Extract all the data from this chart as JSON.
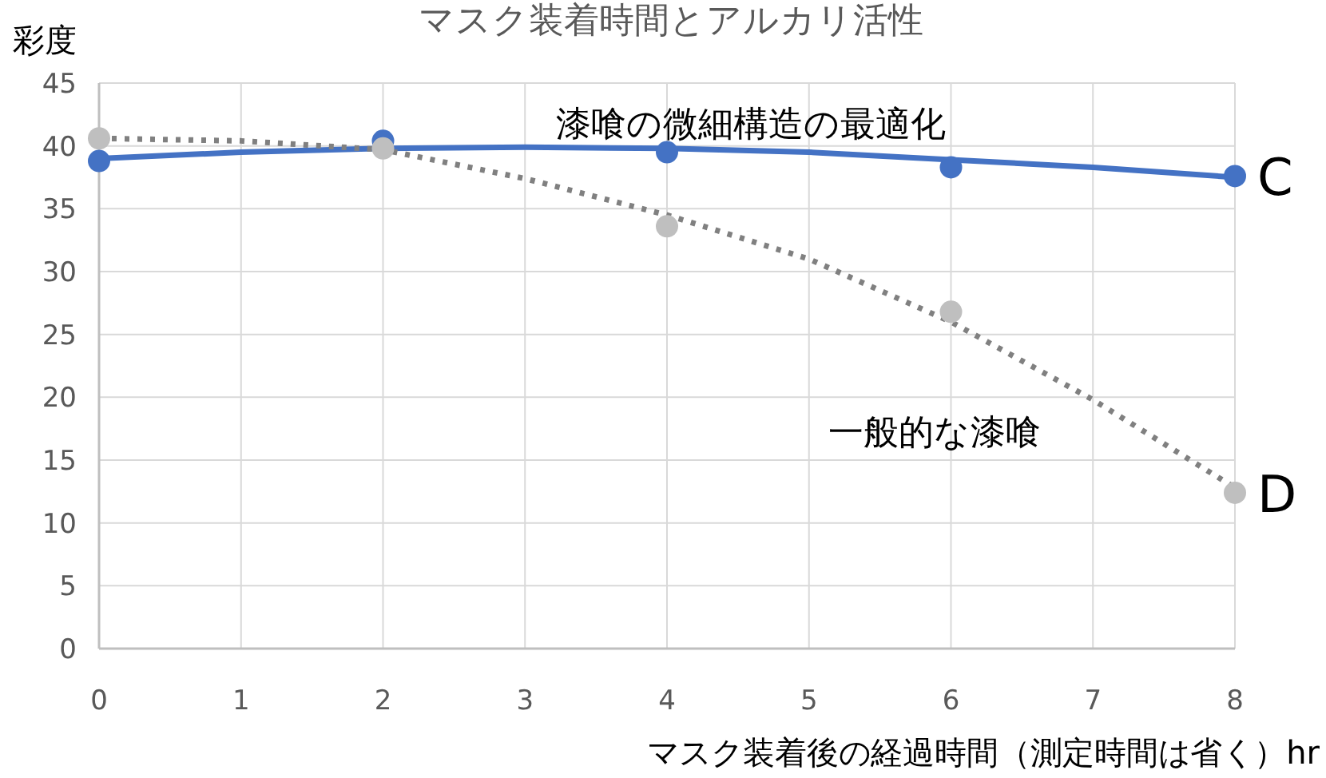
{
  "chart_data": {
    "type": "scatter",
    "title": "マスク装着時間とアルカリ活性",
    "xlabel": "マスク装着後の経過時間（測定時間は省く）hr",
    "ylabel": "彩度",
    "xlim": [
      0,
      8
    ],
    "ylim": [
      0,
      45
    ],
    "xticks": [
      0,
      1,
      2,
      3,
      4,
      5,
      6,
      7,
      8
    ],
    "yticks": [
      0,
      5,
      10,
      15,
      20,
      25,
      30,
      35,
      40,
      45
    ],
    "grid": true,
    "annotations": [
      "漆喰の微細構造の最適化",
      "一般的な漆喰"
    ],
    "series": [
      {
        "type": "line",
        "color": "#4472c4",
        "line_style": "solid",
        "marker": "none",
        "x": [
          0,
          1,
          2,
          3,
          4,
          5,
          6,
          7,
          8
        ],
        "values": [
          39.0,
          39.5,
          39.8,
          39.9,
          39.8,
          39.5,
          38.9,
          38.3,
          37.5
        ]
      },
      {
        "type": "line",
        "color": "#808080",
        "line_style": "dotted",
        "marker": "none",
        "x": [
          0,
          1,
          2,
          3,
          4,
          5,
          6,
          7,
          8
        ],
        "values": [
          40.6,
          40.4,
          39.7,
          37.4,
          34.5,
          31.0,
          26.0,
          19.8,
          12.8
        ]
      },
      {
        "name": "C",
        "color": "#4472c4",
        "marker": "circle",
        "x": [
          0,
          2,
          4,
          6,
          8
        ],
        "values": [
          38.8,
          40.4,
          39.5,
          38.3,
          37.6
        ]
      },
      {
        "name": "D",
        "color": "#bfbfbf",
        "marker": "circle",
        "x": [
          0,
          2,
          4,
          6,
          8
        ],
        "values": [
          40.6,
          39.8,
          33.6,
          26.8,
          12.4
        ]
      }
    ]
  }
}
